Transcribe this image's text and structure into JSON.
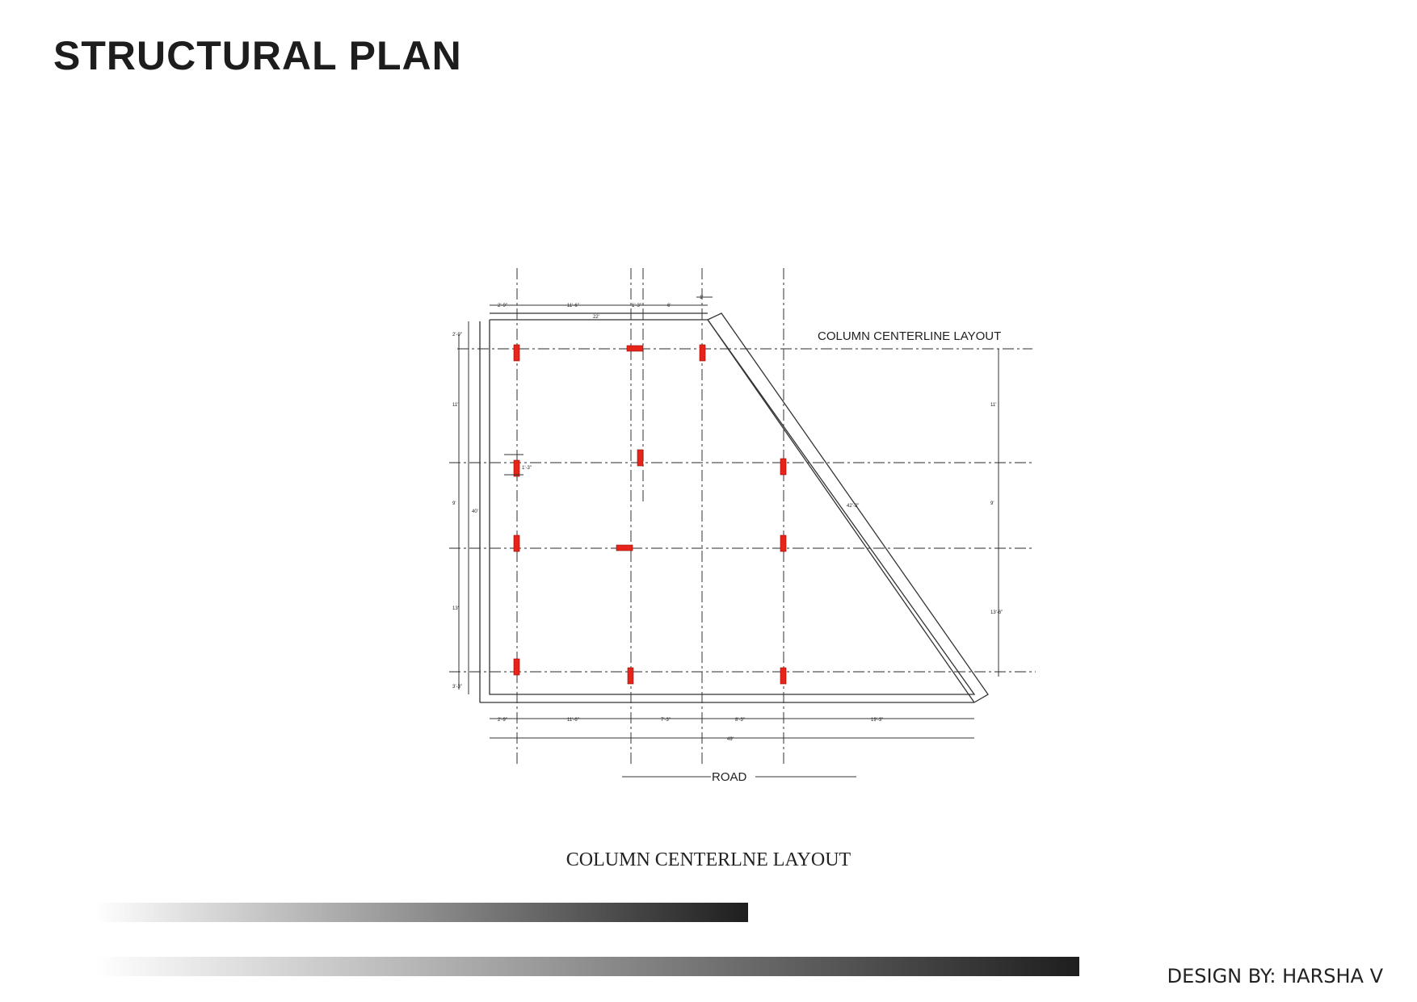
{
  "title": "STRUCTURAL PLAN",
  "drawing": {
    "layout_label": "COLUMN CENTERLINE LAYOUT",
    "road_label": "ROAD",
    "column_color": "#e8231a",
    "dimensions": {
      "top_row_1": [
        "2'-9\"",
        "11'-6\"",
        "1'-3\"",
        "6'"
      ],
      "top_row_2": [
        "22'"
      ],
      "top_tick": "1'",
      "left_outer": [
        "2'-9\"",
        "11'",
        "9'",
        "13'",
        "3'-3\""
      ],
      "left_overall": "40'",
      "right": [
        "11'",
        "9'",
        "13'-6\""
      ],
      "diagonal": "42'-3\"",
      "bottom_row_1": [
        "2'-9\"",
        "11'-6\"",
        "7'-3\"",
        "8'-3\"",
        "19'-3\""
      ],
      "bottom_overall": "49'",
      "column_tag": "1'-3\""
    }
  },
  "caption": "COLUMN CENTERLNE LAYOUT",
  "credit": "DESIGN BY: HARSHA V",
  "colors": {
    "line": "#333333",
    "gradient_start": "#ffffff",
    "gradient_end": "#1e1e1e"
  }
}
